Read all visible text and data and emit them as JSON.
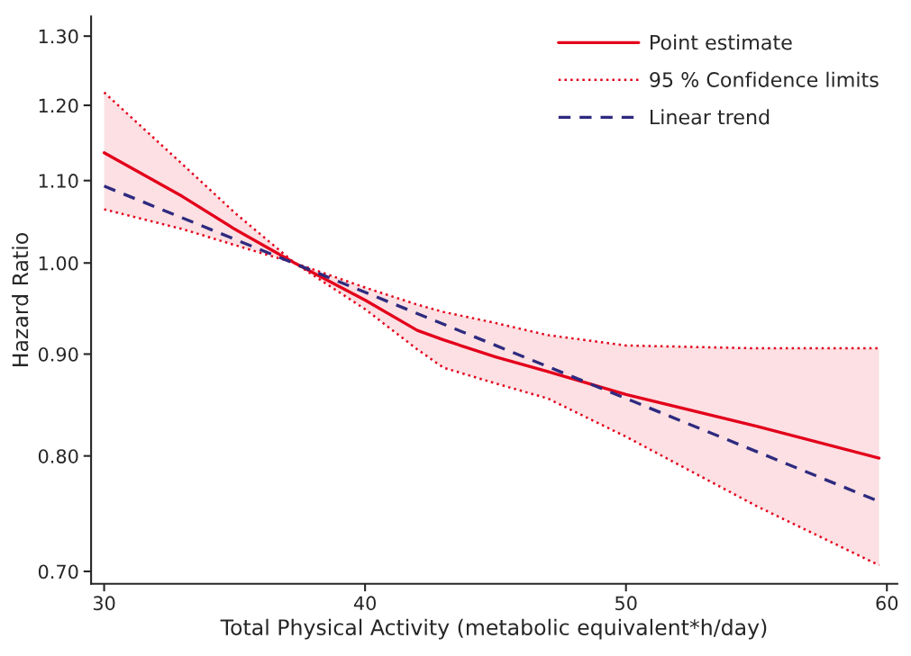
{
  "chart_data": {
    "type": "line",
    "xlabel": "Total Physical Activity (metabolic equivalent*h/day)",
    "ylabel": "Hazard Ratio",
    "log": "y",
    "grid": false,
    "legend": "top right",
    "xlim": [
      29.5,
      60.4
    ],
    "xticks": [
      30,
      40,
      50,
      60
    ],
    "ylim": [
      0.69,
      1.33
    ],
    "yticks": [
      {
        "value": 0.7,
        "label": "0.70"
      },
      {
        "value": 0.8,
        "label": "0.80"
      },
      {
        "value": 0.9,
        "label": "0.90"
      },
      {
        "value": 1.0,
        "label": "1.00"
      },
      {
        "value": 1.1,
        "label": "1.10"
      },
      {
        "value": 1.2,
        "label": "1.20"
      },
      {
        "value": 1.3,
        "label": "1.30"
      }
    ],
    "x": [
      30,
      33,
      35,
      37.3,
      40,
      42,
      43,
      45,
      47,
      50,
      55,
      59.7
    ],
    "series": [
      {
        "name": "Point estimate",
        "color": "#e3001b",
        "line_style": "solid",
        "values": [
          1.136,
          1.08,
          1.04,
          1.0,
          0.958,
          0.925,
          0.915,
          0.897,
          0.882,
          0.859,
          0.828,
          0.798
        ],
        "lower": [
          1.064,
          1.04,
          1.021,
          1.0,
          0.948,
          0.905,
          0.886,
          0.87,
          0.855,
          0.818,
          0.755,
          0.705
        ],
        "upper": [
          1.218,
          1.121,
          1.06,
          1.0,
          0.972,
          0.953,
          0.945,
          0.933,
          0.92,
          0.909,
          0.906,
          0.906
        ]
      },
      {
        "name": "95 % Confidence limits",
        "color": "#e3001b",
        "line_style": "dotted",
        "values": [
          1.218,
          1.121,
          1.06,
          1.0,
          0.972,
          0.953,
          0.945,
          0.933,
          0.92,
          0.909,
          0.906,
          0.906
        ]
      },
      {
        "color": "#e3001b",
        "line_style": "dotted",
        "values": [
          1.064,
          1.04,
          1.021,
          1.0,
          0.948,
          0.905,
          0.886,
          0.87,
          0.855,
          0.818,
          0.755,
          0.705
        ]
      },
      {
        "name": "Linear trend",
        "color": "#2e2a7f",
        "line_style": "dashed",
        "x": [
          30,
          59.7
        ],
        "values": [
          1.093,
          0.759
        ]
      }
    ]
  }
}
